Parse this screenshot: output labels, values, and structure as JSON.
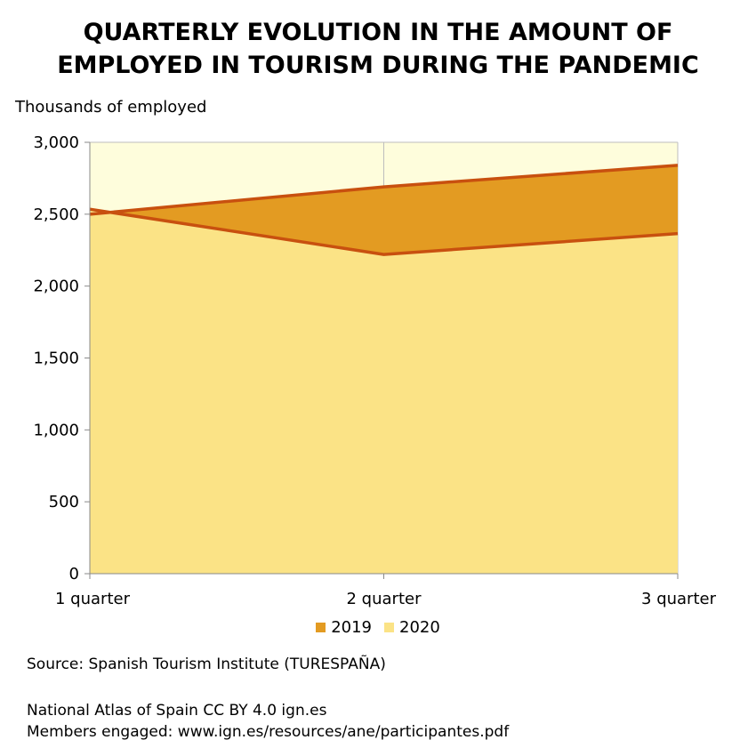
{
  "chart_data": {
    "type": "area",
    "title_lines": [
      "QUARTERLY EVOLUTION IN THE AMOUNT OF",
      "EMPLOYED IN TOURISM DURING THE PANDEMIC"
    ],
    "ylabel": "Thousands of employed",
    "xlabel": "",
    "categories": [
      "1 quarter",
      "2 quarter",
      "3 quarter"
    ],
    "ylim": [
      0,
      3000
    ],
    "yticks": [
      0,
      500,
      1000,
      1500,
      2000,
      2500,
      3000
    ],
    "ytick_labels": [
      "0",
      "500",
      "1,000",
      "1,500",
      "2,000",
      "2,500",
      "3,000"
    ],
    "series": [
      {
        "name": "2019",
        "values": [
          2500,
          2690,
          2840
        ],
        "color": "#E39B22"
      },
      {
        "name": "2020",
        "values": [
          2535,
          2220,
          2365
        ],
        "color": "#FBE386"
      }
    ],
    "line_color": "#C8500F",
    "plot_background": "#FEFDDC",
    "grid": true,
    "legend_position": "bottom"
  },
  "footer": {
    "source": "Source: Spanish Tourism Institute (TURESPAÑA)",
    "atlas": "National Atlas of Spain CC BY 4.0 ign.es",
    "members": "Members engaged: www.ign.es/resources/ane/participantes.pdf"
  }
}
